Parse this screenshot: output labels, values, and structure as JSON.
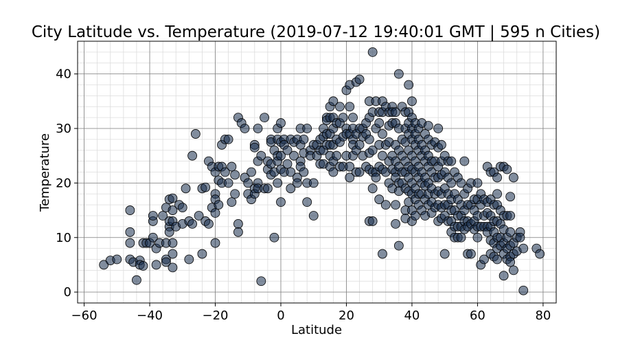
{
  "chart_data": {
    "type": "scatter",
    "title": "City Latitude vs. Temperature (2019-07-12 19:40:01 GMT | 595 n Cities)",
    "xlabel": "Latitude",
    "ylabel": "Temperature",
    "xlim": [
      -62,
      84
    ],
    "ylim": [
      -2,
      46
    ],
    "x_ticks": [
      -60,
      -40,
      -20,
      0,
      20,
      40,
      60,
      80
    ],
    "y_ticks": [
      0,
      10,
      20,
      30,
      40
    ],
    "grid": "major and minor",
    "point_color": "#1a2f4f",
    "points": [
      [
        -54,
        5
      ],
      [
        -52,
        5.8
      ],
      [
        -50,
        6
      ],
      [
        -46,
        15
      ],
      [
        -46,
        11
      ],
      [
        -46,
        9
      ],
      [
        -46,
        6
      ],
      [
        -45,
        5.5
      ],
      [
        -44,
        2.2
      ],
      [
        -43,
        5.8
      ],
      [
        -43,
        5
      ],
      [
        -42,
        4.8
      ],
      [
        -42,
        9
      ],
      [
        -41,
        9
      ],
      [
        -40,
        9
      ],
      [
        -39,
        10
      ],
      [
        -39,
        13
      ],
      [
        -39,
        14
      ],
      [
        -38,
        8
      ],
      [
        -38,
        5
      ],
      [
        -37,
        9
      ],
      [
        -36,
        14
      ],
      [
        -35,
        15.5
      ],
      [
        -35,
        9
      ],
      [
        -35,
        6
      ],
      [
        -35,
        5.5
      ],
      [
        -34,
        12
      ],
      [
        -34,
        13
      ],
      [
        -34,
        11
      ],
      [
        -34,
        17
      ],
      [
        -33,
        17.2
      ],
      [
        -33,
        15
      ],
      [
        -33,
        13
      ],
      [
        -33,
        9
      ],
      [
        -33,
        7
      ],
      [
        -33,
        4.5
      ],
      [
        -32,
        12
      ],
      [
        -31,
        16
      ],
      [
        -30,
        12.5
      ],
      [
        -30,
        15.5
      ],
      [
        -29,
        19
      ],
      [
        -28,
        13
      ],
      [
        -28,
        6
      ],
      [
        -27,
        12.5
      ],
      [
        -27,
        25
      ],
      [
        -26,
        29
      ],
      [
        -25,
        14
      ],
      [
        -24,
        19
      ],
      [
        -24,
        7
      ],
      [
        -23,
        19.2
      ],
      [
        -23,
        13
      ],
      [
        -22,
        24
      ],
      [
        -22,
        12.5
      ],
      [
        -21,
        23
      ],
      [
        -21,
        15.5
      ],
      [
        -20,
        22
      ],
      [
        -20,
        18
      ],
      [
        -20,
        17
      ],
      [
        -20,
        14.5
      ],
      [
        -20,
        9
      ],
      [
        -19,
        23
      ],
      [
        -19,
        20.5
      ],
      [
        -19,
        16
      ],
      [
        -18,
        27
      ],
      [
        -18,
        23
      ],
      [
        -18,
        20
      ],
      [
        -17,
        28
      ],
      [
        -17,
        22
      ],
      [
        -16,
        28
      ],
      [
        -16,
        20
      ],
      [
        -15,
        23
      ],
      [
        -15,
        16.5
      ],
      [
        -14,
        21.5
      ],
      [
        -14,
        18
      ],
      [
        -13,
        32
      ],
      [
        -13,
        12.5
      ],
      [
        -13,
        11
      ],
      [
        -12,
        31
      ],
      [
        -11,
        30
      ],
      [
        -11,
        21
      ],
      [
        -10,
        20
      ],
      [
        -10,
        18
      ],
      [
        -9,
        22
      ],
      [
        -9,
        17
      ],
      [
        -8,
        27
      ],
      [
        -8,
        26.5
      ],
      [
        -8,
        19
      ],
      [
        -8,
        18
      ],
      [
        -7,
        30
      ],
      [
        -7,
        24
      ],
      [
        -7,
        20
      ],
      [
        -7,
        19
      ],
      [
        -6,
        25
      ],
      [
        -6,
        2
      ],
      [
        -5,
        32
      ],
      [
        -5,
        19
      ],
      [
        -4,
        24
      ],
      [
        -4,
        22.5
      ],
      [
        -4,
        19
      ],
      [
        -3,
        28
      ],
      [
        -3,
        27.5
      ],
      [
        -3,
        23.5
      ],
      [
        -3,
        21.5
      ],
      [
        -2,
        26
      ],
      [
        -2,
        22
      ],
      [
        -2,
        10
      ],
      [
        -1,
        30
      ],
      [
        -1,
        28
      ],
      [
        -1,
        25
      ],
      [
        -1,
        24
      ],
      [
        -1,
        20
      ],
      [
        0,
        31
      ],
      [
        0,
        27.5
      ],
      [
        0,
        25
      ],
      [
        0,
        22.5
      ],
      [
        0,
        16.5
      ],
      [
        1,
        28
      ],
      [
        1,
        27
      ],
      [
        1,
        22
      ],
      [
        2,
        26
      ],
      [
        2,
        23.5
      ],
      [
        3,
        28
      ],
      [
        3,
        22
      ],
      [
        3,
        19
      ],
      [
        4,
        27.5
      ],
      [
        4,
        25
      ],
      [
        5,
        28
      ],
      [
        5,
        21
      ],
      [
        5,
        20
      ],
      [
        6,
        30
      ],
      [
        6,
        27
      ],
      [
        6,
        24
      ],
      [
        6,
        23
      ],
      [
        7,
        28
      ],
      [
        7,
        25.5
      ],
      [
        7,
        22
      ],
      [
        8,
        30
      ],
      [
        8,
        20
      ],
      [
        8,
        16.5
      ],
      [
        9,
        26
      ],
      [
        9,
        25
      ],
      [
        10,
        27
      ],
      [
        10,
        20
      ],
      [
        10,
        14
      ],
      [
        11,
        27
      ],
      [
        11,
        25
      ],
      [
        12,
        28
      ],
      [
        12,
        26
      ],
      [
        12,
        23.5
      ],
      [
        13,
        30
      ],
      [
        13,
        28.5
      ],
      [
        13,
        26
      ],
      [
        13,
        23.5
      ],
      [
        14,
        32
      ],
      [
        14,
        31.5
      ],
      [
        14,
        29
      ],
      [
        14,
        27
      ],
      [
        15,
        34
      ],
      [
        15,
        32
      ],
      [
        15,
        29
      ],
      [
        15,
        27
      ],
      [
        15,
        25
      ],
      [
        15,
        23
      ],
      [
        16,
        35
      ],
      [
        16,
        32
      ],
      [
        16,
        30
      ],
      [
        16,
        27
      ],
      [
        16,
        24
      ],
      [
        16,
        22
      ],
      [
        17,
        31
      ],
      [
        17,
        28
      ],
      [
        17,
        25
      ],
      [
        18,
        34
      ],
      [
        18,
        31
      ],
      [
        18,
        27.5
      ],
      [
        18,
        23
      ],
      [
        19,
        32
      ],
      [
        19,
        28.5
      ],
      [
        19,
        23
      ],
      [
        20,
        37
      ],
      [
        20,
        30
      ],
      [
        20,
        29
      ],
      [
        20,
        25
      ],
      [
        21,
        38
      ],
      [
        21,
        34
      ],
      [
        21,
        29
      ],
      [
        21,
        23
      ],
      [
        21,
        21
      ],
      [
        22,
        32
      ],
      [
        22,
        30
      ],
      [
        22,
        28
      ],
      [
        22,
        27
      ],
      [
        22,
        25
      ],
      [
        23,
        38.5
      ],
      [
        23,
        29
      ],
      [
        23,
        26
      ],
      [
        23,
        22
      ],
      [
        24,
        39
      ],
      [
        24,
        30
      ],
      [
        24,
        27
      ],
      [
        24,
        22
      ],
      [
        25,
        30
      ],
      [
        25,
        28.5
      ],
      [
        25,
        25
      ],
      [
        26,
        31
      ],
      [
        26,
        29
      ],
      [
        26,
        23
      ],
      [
        27,
        35
      ],
      [
        27,
        32
      ],
      [
        27,
        28
      ],
      [
        27,
        25.5
      ],
      [
        27,
        22.5
      ],
      [
        27,
        13
      ],
      [
        28,
        44
      ],
      [
        28,
        33
      ],
      [
        28,
        26
      ],
      [
        28,
        22
      ],
      [
        28,
        19
      ],
      [
        28,
        13
      ],
      [
        29,
        35
      ],
      [
        29,
        30
      ],
      [
        29,
        22
      ],
      [
        29,
        21
      ],
      [
        30,
        33
      ],
      [
        30,
        31
      ],
      [
        30,
        27
      ],
      [
        30,
        23
      ],
      [
        30,
        17
      ],
      [
        31,
        35
      ],
      [
        31,
        33
      ],
      [
        31,
        29
      ],
      [
        31,
        25
      ],
      [
        31,
        22.5
      ],
      [
        31,
        7
      ],
      [
        32,
        34
      ],
      [
        32,
        27
      ],
      [
        32,
        22
      ],
      [
        32,
        16
      ],
      [
        33,
        33
      ],
      [
        33,
        30.5
      ],
      [
        33,
        27.5
      ],
      [
        33,
        24
      ],
      [
        33,
        20
      ],
      [
        34,
        34
      ],
      [
        34,
        33
      ],
      [
        34,
        31
      ],
      [
        34,
        25
      ],
      [
        34,
        22.5
      ],
      [
        34,
        19
      ],
      [
        35,
        33
      ],
      [
        35,
        31
      ],
      [
        35,
        27
      ],
      [
        35,
        24
      ],
      [
        35,
        22
      ],
      [
        35,
        21
      ],
      [
        35,
        16
      ],
      [
        35,
        12.5
      ],
      [
        36,
        40
      ],
      [
        36,
        30
      ],
      [
        36,
        26
      ],
      [
        36,
        23
      ],
      [
        36,
        20
      ],
      [
        36,
        18.5
      ],
      [
        36,
        8.5
      ],
      [
        37,
        34
      ],
      [
        37,
        28
      ],
      [
        37,
        25
      ],
      [
        37,
        22
      ],
      [
        37,
        20
      ],
      [
        38,
        33
      ],
      [
        38,
        30
      ],
      [
        38,
        27.5
      ],
      [
        38,
        24
      ],
      [
        38,
        22
      ],
      [
        38,
        19
      ],
      [
        38,
        15
      ],
      [
        38,
        13.5
      ],
      [
        39,
        38
      ],
      [
        39,
        33
      ],
      [
        39,
        31
      ],
      [
        39,
        29
      ],
      [
        39,
        26
      ],
      [
        39,
        23
      ],
      [
        39,
        21
      ],
      [
        39,
        18.5
      ],
      [
        39,
        16.5
      ],
      [
        40,
        35
      ],
      [
        40,
        32
      ],
      [
        40,
        30
      ],
      [
        40,
        28
      ],
      [
        40,
        25
      ],
      [
        40,
        22.5
      ],
      [
        40,
        20
      ],
      [
        40,
        18
      ],
      [
        40,
        15
      ],
      [
        40,
        13
      ],
      [
        41,
        31
      ],
      [
        41,
        29
      ],
      [
        41,
        27
      ],
      [
        41,
        24
      ],
      [
        41,
        22
      ],
      [
        41,
        19
      ],
      [
        41,
        17
      ],
      [
        41,
        14
      ],
      [
        42,
        30
      ],
      [
        42,
        28
      ],
      [
        42,
        26
      ],
      [
        42,
        23
      ],
      [
        42,
        21
      ],
      [
        42,
        18
      ],
      [
        42,
        16
      ],
      [
        43,
        31
      ],
      [
        43,
        27
      ],
      [
        43,
        25
      ],
      [
        43,
        22
      ],
      [
        43,
        20
      ],
      [
        43,
        18
      ],
      [
        43,
        15
      ],
      [
        44,
        29
      ],
      [
        44,
        26
      ],
      [
        44,
        24
      ],
      [
        44,
        21
      ],
      [
        44,
        19.5
      ],
      [
        44,
        17
      ],
      [
        44,
        14
      ],
      [
        45,
        30.5
      ],
      [
        45,
        28
      ],
      [
        45,
        25
      ],
      [
        45,
        23
      ],
      [
        45,
        20
      ],
      [
        45,
        18
      ],
      [
        45,
        16
      ],
      [
        46,
        27
      ],
      [
        46,
        24
      ],
      [
        46,
        22
      ],
      [
        46,
        19
      ],
      [
        46,
        16.5
      ],
      [
        46,
        14.5
      ],
      [
        47,
        27.5
      ],
      [
        47,
        24
      ],
      [
        47,
        21
      ],
      [
        47,
        18
      ],
      [
        47,
        15.5
      ],
      [
        48,
        30
      ],
      [
        48,
        26.5
      ],
      [
        48,
        23
      ],
      [
        48,
        21
      ],
      [
        48,
        18.5
      ],
      [
        48,
        16
      ],
      [
        48,
        13
      ],
      [
        49,
        27
      ],
      [
        49,
        24
      ],
      [
        49,
        21.5
      ],
      [
        49,
        18
      ],
      [
        49,
        15.5
      ],
      [
        49,
        13.5
      ],
      [
        50,
        25
      ],
      [
        50,
        22
      ],
      [
        50,
        19
      ],
      [
        50,
        16
      ],
      [
        50,
        14
      ],
      [
        50,
        7
      ],
      [
        51,
        24
      ],
      [
        51,
        21
      ],
      [
        51,
        18
      ],
      [
        51,
        16
      ],
      [
        51,
        13
      ],
      [
        52,
        24
      ],
      [
        52,
        20
      ],
      [
        52,
        17
      ],
      [
        52,
        15
      ],
      [
        52,
        13
      ],
      [
        52,
        11
      ],
      [
        53,
        22
      ],
      [
        53,
        18
      ],
      [
        53,
        15
      ],
      [
        53,
        12
      ],
      [
        53,
        10
      ],
      [
        54,
        21
      ],
      [
        54,
        17
      ],
      [
        54,
        14
      ],
      [
        54,
        12
      ],
      [
        54,
        10
      ],
      [
        55,
        20
      ],
      [
        55,
        16
      ],
      [
        55,
        14
      ],
      [
        55,
        12
      ],
      [
        55,
        10
      ],
      [
        56,
        24
      ],
      [
        56,
        18
      ],
      [
        56,
        15
      ],
      [
        56,
        13
      ],
      [
        56,
        11.5
      ],
      [
        57,
        19
      ],
      [
        57,
        16
      ],
      [
        57,
        13
      ],
      [
        57,
        12
      ],
      [
        57,
        7
      ],
      [
        58,
        20
      ],
      [
        58,
        16
      ],
      [
        58,
        12.5
      ],
      [
        58,
        7
      ],
      [
        59,
        17
      ],
      [
        59,
        15
      ],
      [
        59,
        13
      ],
      [
        59,
        11.5
      ],
      [
        60,
        20
      ],
      [
        60,
        17
      ],
      [
        60,
        14
      ],
      [
        60,
        12
      ],
      [
        60,
        10
      ],
      [
        61,
        18
      ],
      [
        61,
        16
      ],
      [
        61,
        12
      ],
      [
        61,
        5
      ],
      [
        62,
        17
      ],
      [
        62,
        14
      ],
      [
        62,
        12
      ],
      [
        62,
        6
      ],
      [
        63,
        23
      ],
      [
        63,
        16.5
      ],
      [
        63,
        14.5
      ],
      [
        63,
        12
      ],
      [
        63,
        11
      ],
      [
        64,
        22
      ],
      [
        64,
        17
      ],
      [
        64,
        14
      ],
      [
        64,
        12
      ],
      [
        64,
        9.5
      ],
      [
        64,
        7
      ],
      [
        65,
        22
      ],
      [
        65,
        16
      ],
      [
        65,
        13
      ],
      [
        65,
        11
      ],
      [
        65,
        9
      ],
      [
        65,
        6.5
      ],
      [
        66,
        21
      ],
      [
        66,
        18
      ],
      [
        66,
        16
      ],
      [
        66,
        13
      ],
      [
        66,
        10
      ],
      [
        66,
        8
      ],
      [
        66,
        6
      ],
      [
        67,
        23
      ],
      [
        67,
        15
      ],
      [
        67,
        12.5
      ],
      [
        67,
        10
      ],
      [
        67,
        8.5
      ],
      [
        68,
        23
      ],
      [
        68,
        14
      ],
      [
        68,
        11.5
      ],
      [
        68,
        9
      ],
      [
        68,
        7
      ],
      [
        68,
        3
      ],
      [
        69,
        22.5
      ],
      [
        69,
        14
      ],
      [
        69,
        10
      ],
      [
        69,
        8
      ],
      [
        69,
        6
      ],
      [
        70,
        17.5
      ],
      [
        70,
        14
      ],
      [
        70,
        11
      ],
      [
        70,
        8.5
      ],
      [
        70,
        6.5
      ],
      [
        70,
        5.5
      ],
      [
        71,
        21
      ],
      [
        71,
        9
      ],
      [
        71,
        7
      ],
      [
        71,
        4
      ],
      [
        72,
        10
      ],
      [
        72,
        7.5
      ],
      [
        73,
        11
      ],
      [
        73,
        10
      ],
      [
        74,
        8
      ],
      [
        74,
        0.3
      ],
      [
        78,
        8
      ],
      [
        79,
        7
      ]
    ]
  }
}
